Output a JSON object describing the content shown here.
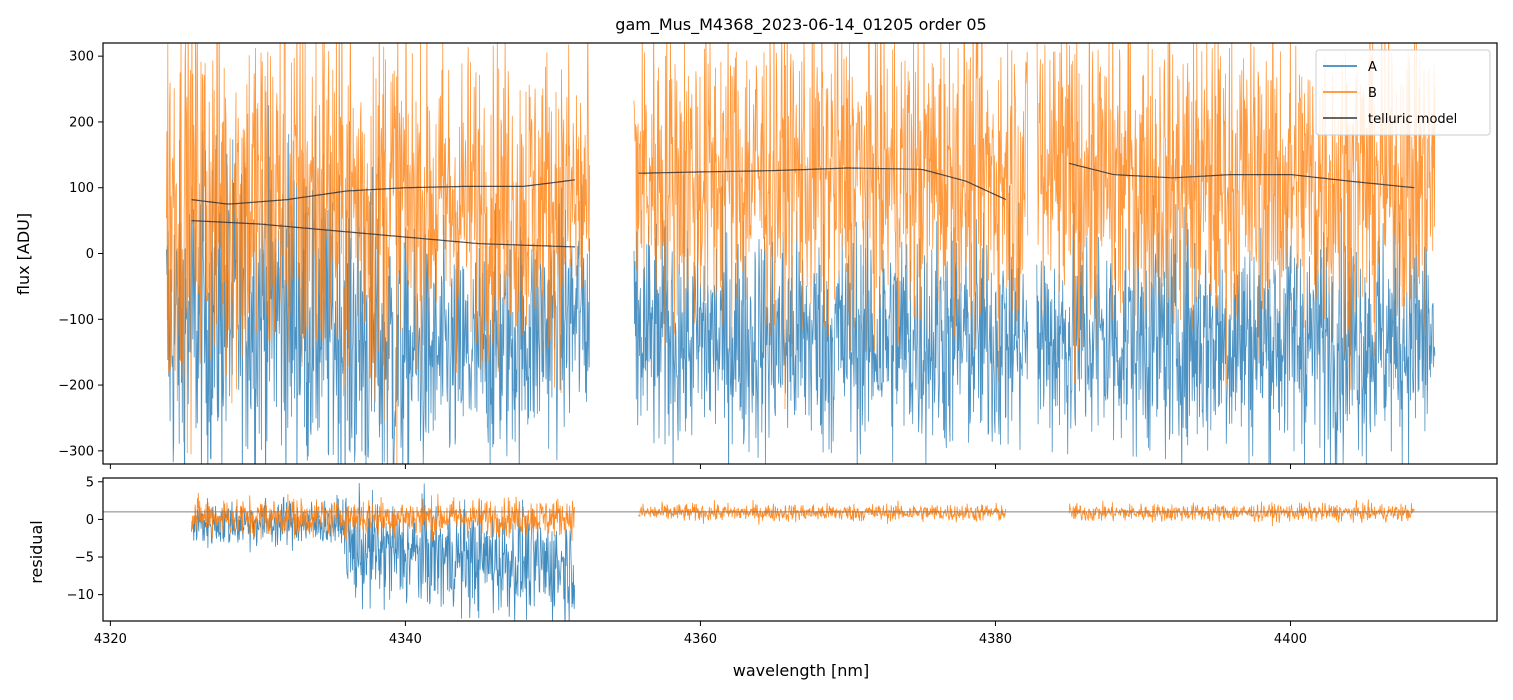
{
  "chart_data": {
    "type": "line",
    "title": "gam_Mus_M4368_2023-06-14_01205  order 05",
    "xlabel": "wavelength [nm]",
    "xlim": [
      4319.5,
      4414.0
    ],
    "x_ticks": [
      "4320",
      "4340",
      "4360",
      "4380",
      "4400"
    ],
    "colors": {
      "A": "#1f77b4",
      "B": "#ff7f0e",
      "model": "#333333",
      "ref": "#808080"
    },
    "segments": [
      {
        "x": [
          4323.8,
          4352.5
        ],
        "model_x": [
          4325.5,
          4351.5
        ]
      },
      {
        "x": [
          4355.5,
          4382.2
        ],
        "model_x": [
          4355.8,
          4380.7
        ]
      },
      {
        "x": [
          4382.8,
          4409.8
        ],
        "model_x": [
          4385.0,
          4408.4
        ]
      }
    ],
    "top_panel": {
      "ylabel": "flux [ADU]",
      "ylim": [
        -320,
        320
      ],
      "y_ticks": [
        "−300",
        "−200",
        "−100",
        "0",
        "100",
        "200",
        "300"
      ],
      "series": [
        {
          "name": "A",
          "levels": [
            -120,
            -130,
            -130
          ],
          "spread": 90
        },
        {
          "name": "B",
          "levels": [
            80,
            120,
            110
          ],
          "spread": 120
        }
      ],
      "telluric_model": [
        {
          "x": [
            4325.5,
            4328,
            4332,
            4336,
            4340,
            4344,
            4348,
            4351.5
          ],
          "y": [
            82,
            75,
            82,
            95,
            100,
            102,
            102,
            112
          ]
        },
        {
          "x": [
            4325.5,
            4330,
            4335,
            4340,
            4345,
            4351.5
          ],
          "y": [
            50,
            45,
            35,
            25,
            15,
            10
          ]
        },
        {
          "x": [
            4355.8,
            4360,
            4365,
            4370,
            4375,
            4378,
            4380.7
          ],
          "y": [
            122,
            124,
            126,
            130,
            128,
            110,
            82
          ]
        },
        {
          "x": [
            4385.0,
            4388,
            4392,
            4396,
            4400,
            4404,
            4408.4
          ],
          "y": [
            137,
            120,
            115,
            120,
            120,
            110,
            100
          ]
        }
      ]
    },
    "bottom_panel": {
      "ylabel": "residual",
      "ylim": [
        -13.5,
        5.5
      ],
      "y_ticks": [
        "−10",
        "−5",
        "0",
        "5"
      ],
      "ref_line": 1.0
    },
    "legend": {
      "position": "top-right",
      "entries": [
        {
          "label": "A",
          "color": "#1f77b4"
        },
        {
          "label": "B",
          "color": "#ff7f0e"
        },
        {
          "label": "telluric model",
          "color": "#333333"
        }
      ]
    }
  }
}
